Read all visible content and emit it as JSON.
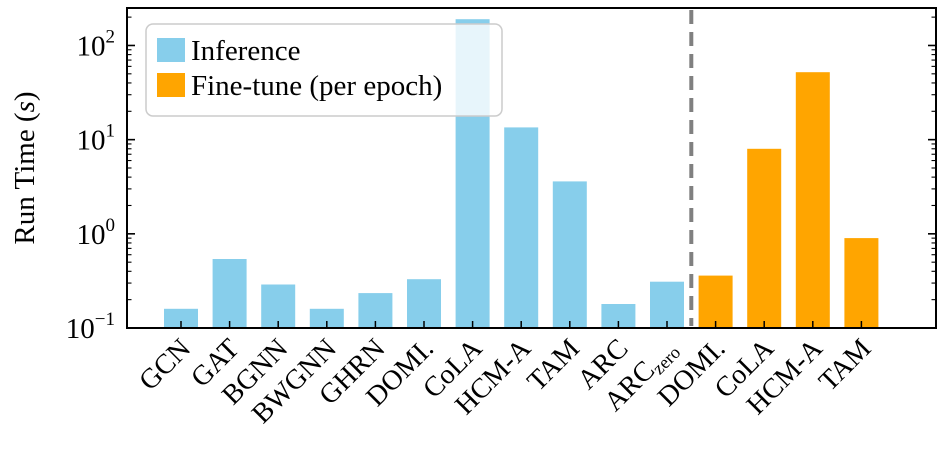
{
  "chart_data": {
    "type": "bar",
    "ylabel": "Run Time (",
    "ylabel_unit": "s",
    "ylabel_close": ")",
    "yscale": "log",
    "ylim": [
      0.1,
      250
    ],
    "yticks": [
      {
        "base": "10",
        "exp": "−1"
      },
      {
        "base": "10",
        "exp": "0"
      },
      {
        "base": "10",
        "exp": "1"
      },
      {
        "base": "10",
        "exp": "2"
      }
    ],
    "legend_position": "top-left",
    "divider_after_index": 10,
    "series": [
      {
        "name": "Inference",
        "color": "#87CEEB",
        "categories": [
          "GCN",
          "GAT",
          "BGNN",
          "BWGNN",
          "GHRN",
          "DOMI.",
          "CoLA",
          "HCM-A",
          "TAM",
          "ARC",
          "ARC"
        ],
        "category_subscripts": [
          "",
          "",
          "",
          "",
          "",
          "",
          "",
          "",
          "",
          "",
          "zero"
        ],
        "values": [
          0.16,
          0.54,
          0.29,
          0.16,
          0.235,
          0.33,
          190,
          13.5,
          3.6,
          0.18,
          0.31
        ]
      },
      {
        "name": "Fine-tune (per epoch)",
        "color": "#FFA500",
        "categories": [
          "DOMI.",
          "CoLA",
          "HCM-A",
          "TAM"
        ],
        "category_subscripts": [
          "",
          "",
          "",
          ""
        ],
        "values": [
          0.36,
          8.0,
          52,
          0.9
        ]
      }
    ]
  }
}
